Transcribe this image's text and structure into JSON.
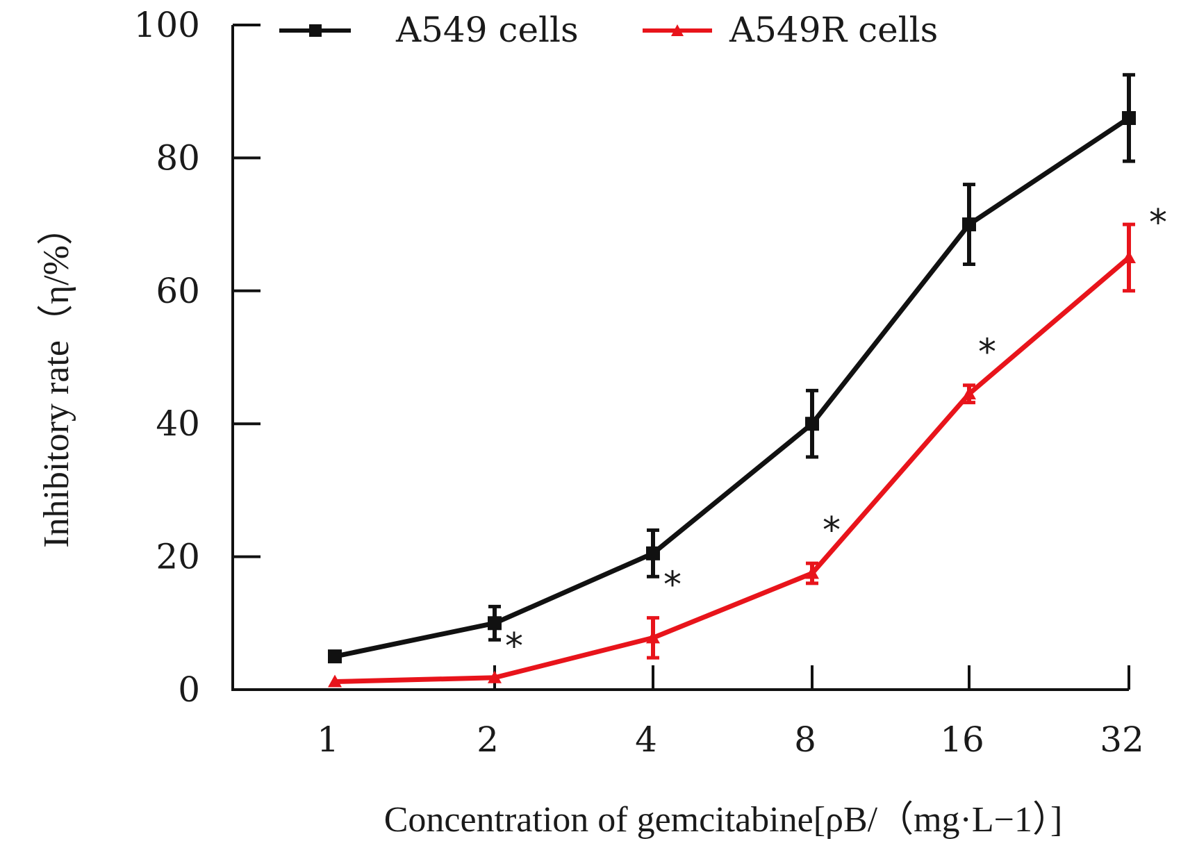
{
  "chart_data": {
    "type": "line",
    "x_scale": "categorical",
    "categories": [
      "1",
      "2",
      "4",
      "8",
      "16",
      "32"
    ],
    "series": [
      {
        "name": "A549 cells",
        "color": "#111111",
        "marker": "square",
        "values": [
          5,
          10,
          20.5,
          40,
          70,
          86
        ],
        "errors": [
          0.5,
          2.5,
          3.5,
          5,
          6,
          6.5
        ]
      },
      {
        "name": "A549R cells",
        "color": "#e8141b",
        "marker": "triangle",
        "values": [
          1.2,
          1.8,
          7.8,
          17.5,
          44.5,
          65
        ],
        "errors": [
          0.6,
          0.6,
          3,
          1.5,
          1.3,
          5
        ]
      }
    ],
    "significance": {
      "symbol": "*",
      "categories": [
        "2",
        "4",
        "8",
        "16",
        "32"
      ]
    },
    "yticks": [
      "0",
      "20",
      "40",
      "60",
      "80",
      "100"
    ],
    "ylim": [
      0,
      100
    ],
    "ylabel": "Inhibitory rate（η/%）",
    "xlabel": "Concentration of gemcitabine[ρB/（mg·L−1）]",
    "legend_position": "top",
    "grid": false
  }
}
